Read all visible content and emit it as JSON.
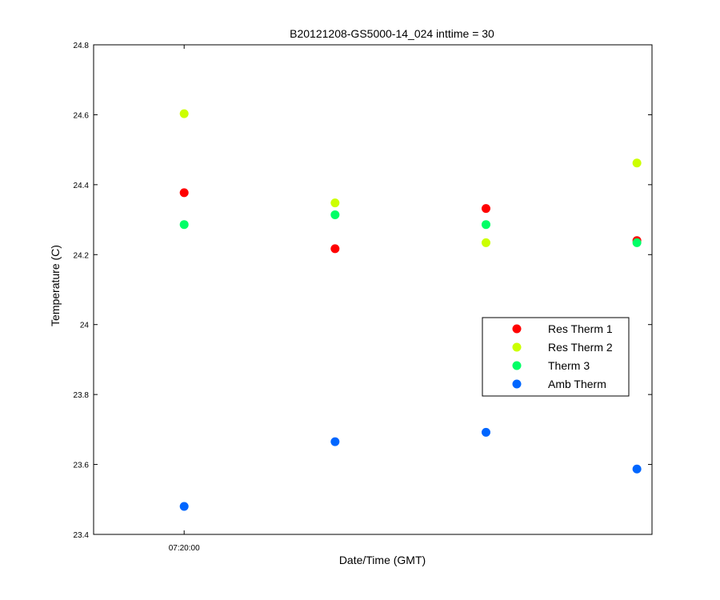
{
  "chart_data": {
    "type": "scatter",
    "title": "B20121208-GS5000-14_024 inttime = 30",
    "xlabel": "Date/Time (GMT)",
    "ylabel": "Temperature (C)",
    "ylim": [
      23.4,
      24.8
    ],
    "yticks": [
      "23.4",
      "23.6",
      "23.8",
      "24",
      "24.2",
      "24.4",
      "24.6",
      "24.8"
    ],
    "xticks": [
      {
        "label": "07:20:00",
        "value": 1
      }
    ],
    "x": [
      1,
      2,
      3,
      4
    ],
    "xlim": [
      0.4,
      4.1
    ],
    "grid": false,
    "legend_position": "right",
    "series": [
      {
        "name": "Res Therm 1",
        "color": "#ff0000",
        "values": [
          24.377,
          24.217,
          24.332,
          24.24
        ]
      },
      {
        "name": "Res Therm 2",
        "color": "#ccff00",
        "values": [
          24.603,
          24.348,
          24.234,
          24.462
        ]
      },
      {
        "name": "Therm 3",
        "color": "#00ff66",
        "values": [
          24.286,
          24.314,
          24.286,
          24.234
        ]
      },
      {
        "name": "Amb Therm",
        "color": "#0066ff",
        "values": [
          23.48,
          23.665,
          23.692,
          23.587
        ]
      }
    ]
  }
}
